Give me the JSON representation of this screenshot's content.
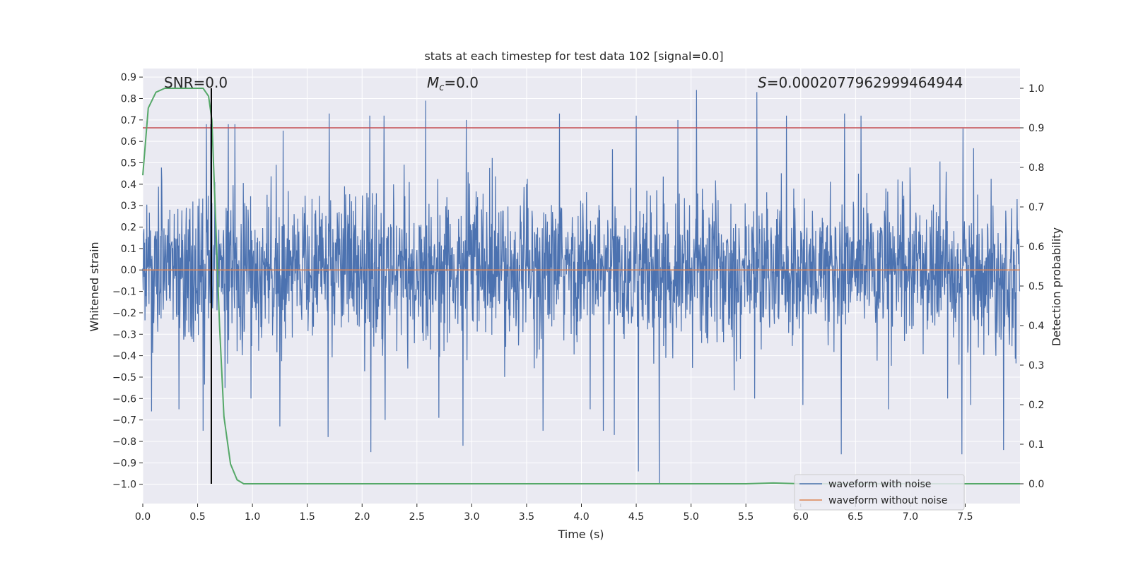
{
  "chart_data": {
    "type": "line",
    "title": "stats at each timestep for test data 102 [signal=0.0]",
    "xlabel": "Time (s)",
    "ylabel": "Whitened strain",
    "y2label": "Detection probability",
    "xlim": [
      0.0,
      8.0
    ],
    "ylim": [
      -1.09,
      0.94
    ],
    "y2lim": [
      -0.05,
      1.05
    ],
    "xticks": [
      "0.0",
      "0.5",
      "1.0",
      "1.5",
      "2.0",
      "2.5",
      "3.0",
      "3.5",
      "4.0",
      "4.5",
      "5.0",
      "5.5",
      "6.0",
      "6.5",
      "7.0",
      "7.5"
    ],
    "yticks": [
      "0.9",
      "0.8",
      "0.7",
      "0.6",
      "0.5",
      "0.4",
      "0.3",
      "0.2",
      "0.1",
      "0.0",
      "−0.1",
      "−0.2",
      "−0.3",
      "−0.4",
      "−0.5",
      "−0.6",
      "−0.7",
      "−0.8",
      "−0.9",
      "−1.0"
    ],
    "y2ticks": [
      "1.0",
      "0.9",
      "0.8",
      "0.7",
      "0.6",
      "0.5",
      "0.4",
      "0.3",
      "0.2",
      "0.1",
      "0.0"
    ],
    "annotations": {
      "snr": "SNR=0.0",
      "mc_symbol": "M",
      "mc_sub": "c",
      "mc_value": "=0.0",
      "s_symbol": "S",
      "s_value": "=0.0002077962999464944"
    },
    "threshold": 0.9,
    "vline_x": 0.625,
    "legend": {
      "placement": "bottom-right",
      "entries": [
        "waveform with noise",
        "waveform without noise"
      ]
    },
    "series": [
      {
        "name": "waveform with noise",
        "color": "#4c72b0",
        "axis": "left",
        "description": "noisy whitened strain, envelope approx ±0.3 with spikes to ±0.85",
        "seed": 102
      },
      {
        "name": "waveform without noise",
        "color": "#dd8452",
        "axis": "left",
        "x": [
          0.0,
          8.0
        ],
        "y": [
          0.0,
          0.0
        ]
      },
      {
        "name": "detection probability",
        "color": "#55a868",
        "axis": "right",
        "x": [
          0.0,
          0.05,
          0.12,
          0.2,
          0.3,
          0.5,
          0.55,
          0.6,
          0.63,
          0.66,
          0.7,
          0.74,
          0.8,
          0.86,
          0.92,
          1.0,
          1.5,
          3.0,
          5.5,
          5.75,
          6.0,
          8.0
        ],
        "y": [
          0.78,
          0.95,
          0.99,
          1.0,
          1.0,
          1.0,
          1.0,
          0.98,
          0.92,
          0.7,
          0.4,
          0.17,
          0.05,
          0.01,
          0.0,
          0.0,
          0.0,
          0.0,
          0.0,
          0.002,
          0.0,
          0.0
        ]
      },
      {
        "name": "threshold",
        "color": "#c44e52",
        "axis": "right",
        "x": [
          0.0,
          8.0
        ],
        "y": [
          0.9,
          0.9
        ]
      }
    ],
    "spikes_up": [
      [
        0.58,
        0.68
      ],
      [
        0.62,
        0.68
      ],
      [
        0.78,
        0.68
      ],
      [
        0.84,
        0.68
      ],
      [
        1.28,
        0.65
      ],
      [
        1.7,
        0.73
      ],
      [
        2.07,
        0.72
      ],
      [
        2.2,
        0.72
      ],
      [
        2.58,
        0.79
      ],
      [
        2.95,
        0.7
      ],
      [
        3.8,
        0.73
      ],
      [
        4.5,
        0.72
      ],
      [
        4.88,
        0.7
      ],
      [
        5.05,
        0.84
      ],
      [
        5.6,
        0.83
      ],
      [
        5.87,
        0.72
      ],
      [
        6.4,
        0.73
      ],
      [
        6.55,
        0.72
      ],
      [
        7.48,
        0.66
      ],
      [
        7.55,
        0.62
      ]
    ],
    "spikes_down": [
      [
        0.55,
        -0.75
      ],
      [
        0.08,
        -0.66
      ],
      [
        0.33,
        -0.65
      ],
      [
        0.75,
        -0.55
      ],
      [
        1.25,
        -0.73
      ],
      [
        1.69,
        -0.78
      ],
      [
        2.08,
        -0.85
      ],
      [
        2.21,
        -0.7
      ],
      [
        2.7,
        -0.69
      ],
      [
        2.92,
        -0.82
      ],
      [
        3.65,
        -0.75
      ],
      [
        4.08,
        -0.65
      ],
      [
        4.2,
        -0.75
      ],
      [
        4.3,
        -0.77
      ],
      [
        4.52,
        -0.94
      ],
      [
        4.71,
        -1.0
      ],
      [
        5.58,
        -0.6
      ],
      [
        6.02,
        -0.63
      ],
      [
        6.37,
        -0.86
      ],
      [
        6.8,
        -0.65
      ],
      [
        7.47,
        -0.86
      ],
      [
        7.55,
        -0.63
      ],
      [
        7.85,
        -0.84
      ]
    ]
  }
}
